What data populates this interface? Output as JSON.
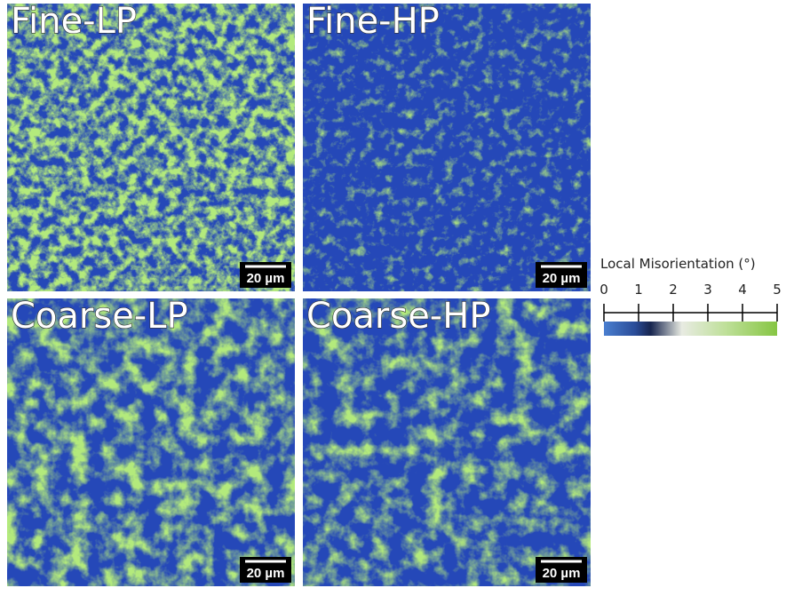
{
  "panels": [
    {
      "label": "Fine-LP",
      "scale_bar": "20 µm"
    },
    {
      "label": "Fine-HP",
      "scale_bar": "20 µm"
    },
    {
      "label": "Coarse-LP",
      "scale_bar": "20 µm"
    },
    {
      "label": "Coarse-HP",
      "scale_bar": "20 µm"
    }
  ],
  "colorbar": {
    "title": "Local Misorientation (°)",
    "ticks": [
      0,
      1,
      2,
      3,
      4,
      5
    ]
  }
}
